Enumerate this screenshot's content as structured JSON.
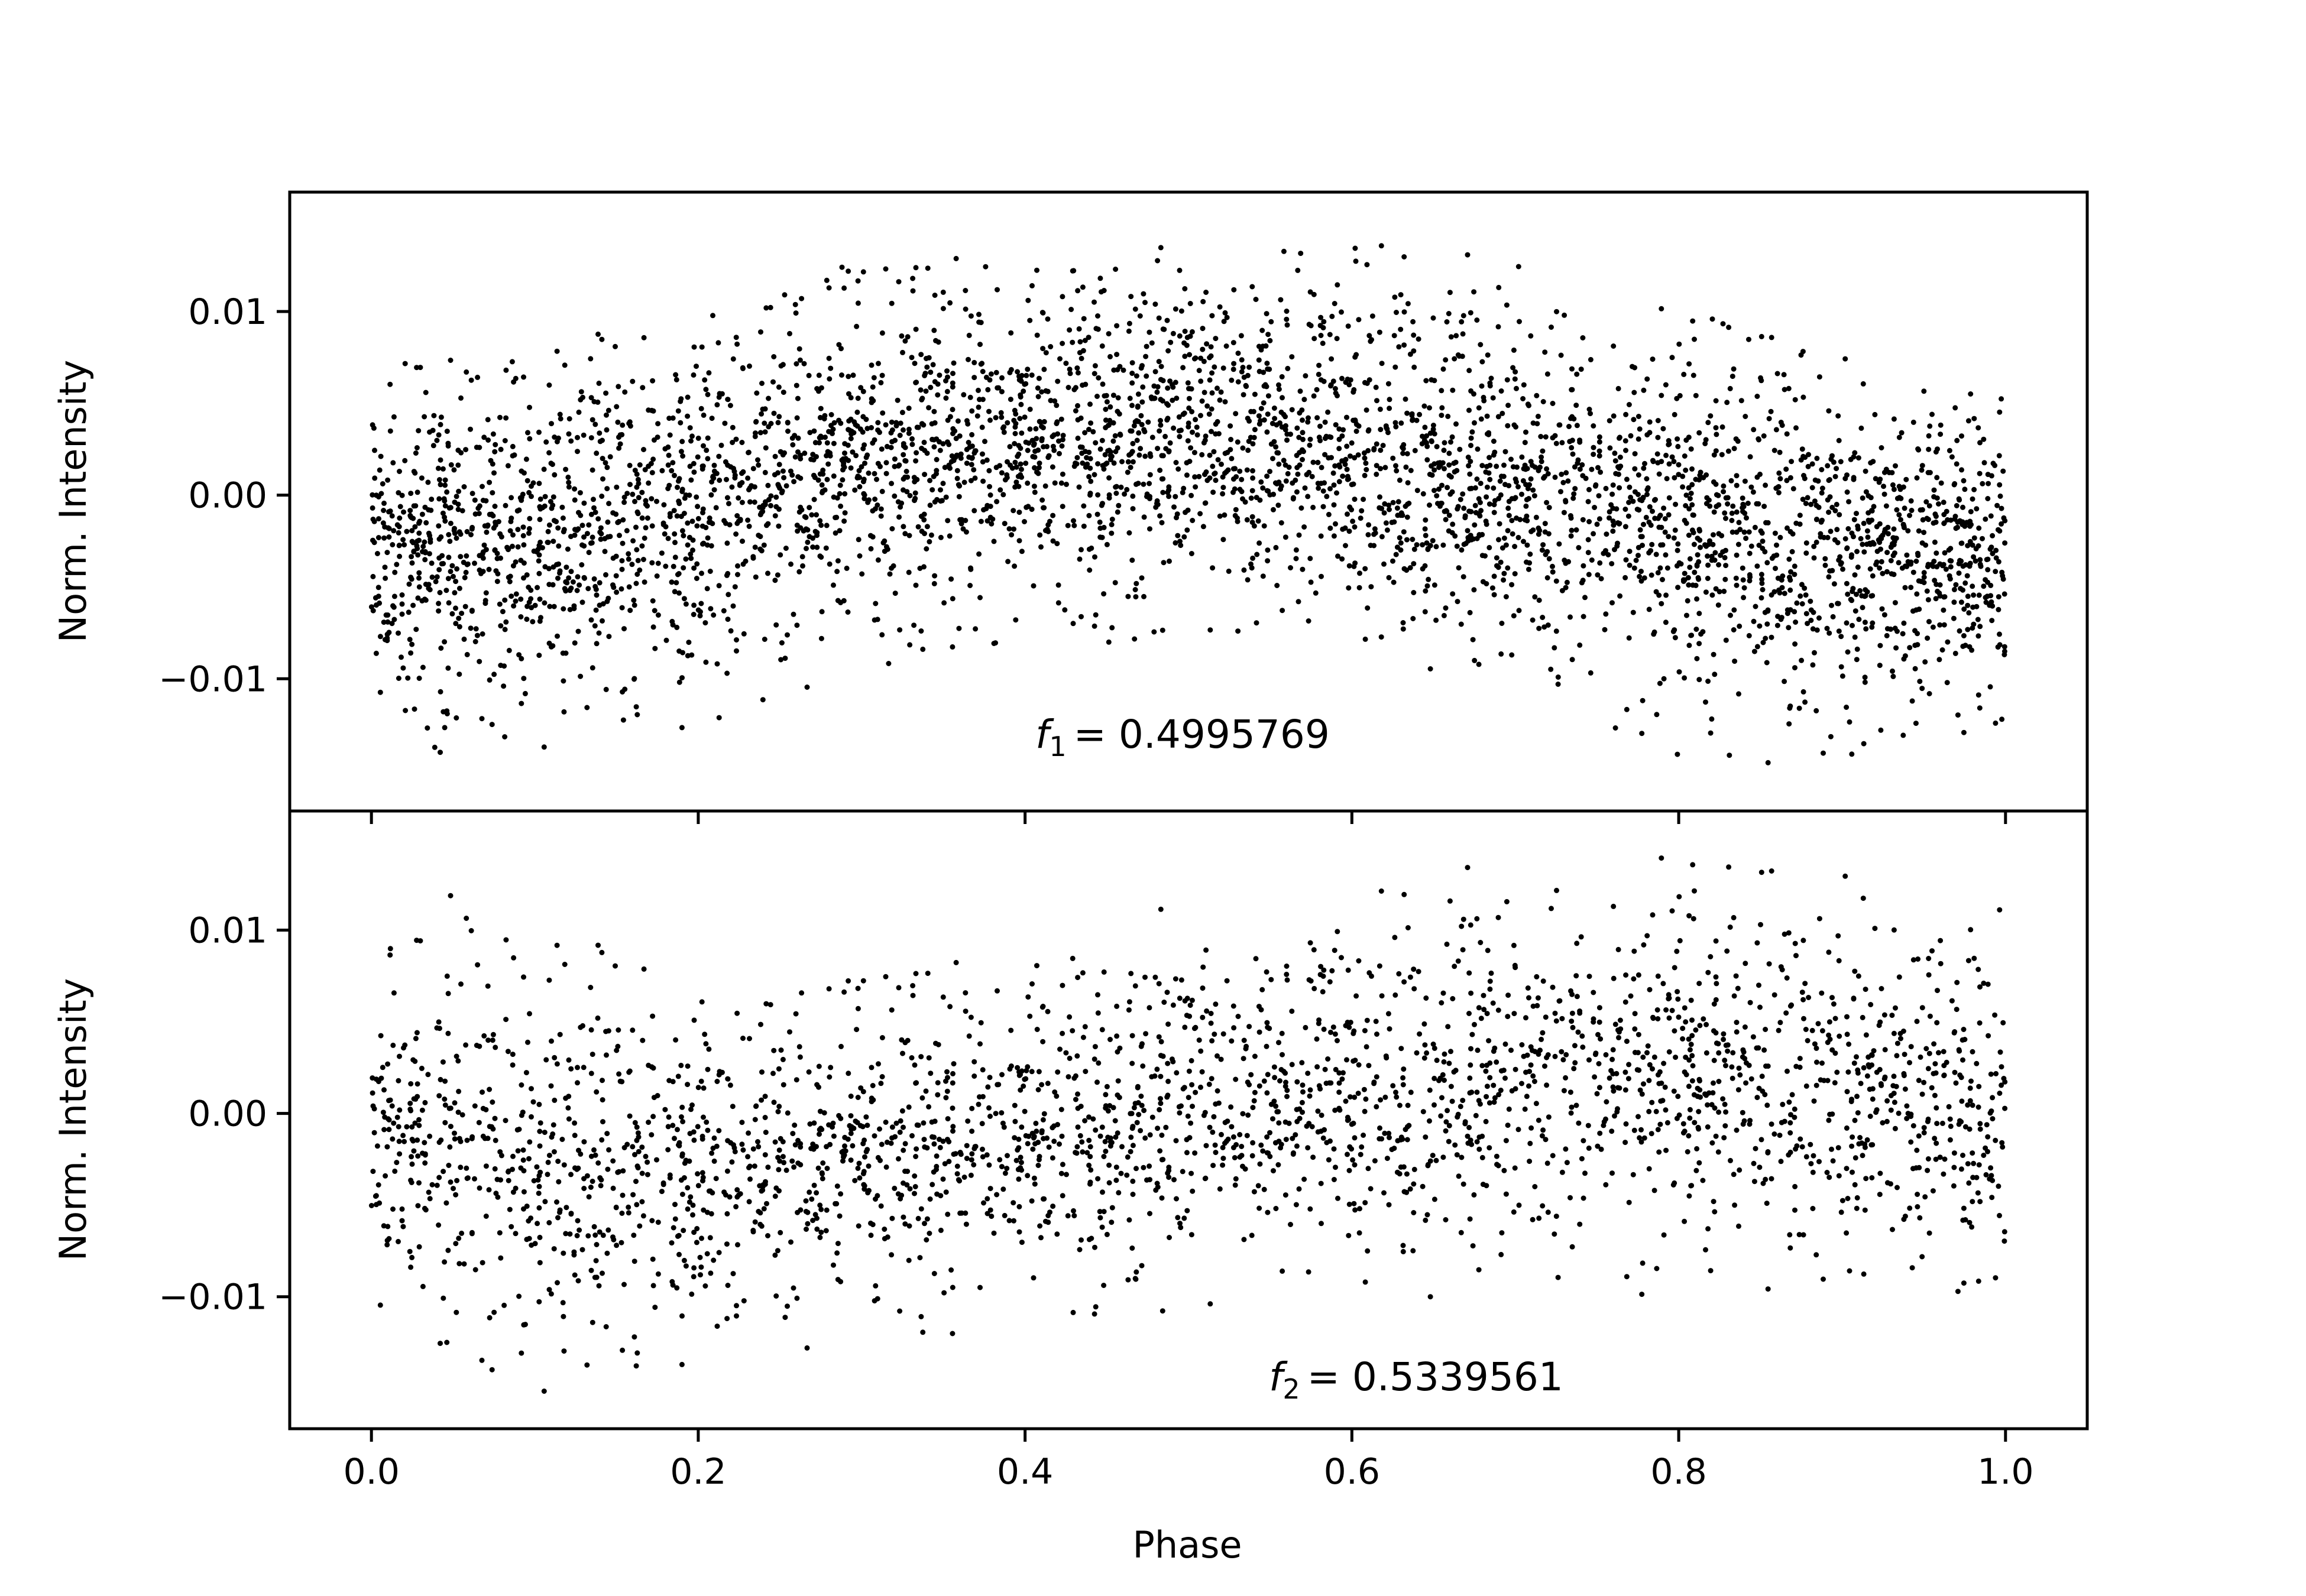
{
  "chart_data": [
    {
      "type": "scatter",
      "title": "",
      "xlabel": "",
      "ylabel": "Norm. Intensity",
      "xlim": [
        -0.05,
        1.05
      ],
      "ylim": [
        -0.0172,
        0.0165
      ],
      "x_ticks": [
        0.0,
        0.2,
        0.4,
        0.6,
        0.8,
        1.0
      ],
      "x_tick_labels": [
        "",
        "",
        "",
        "",
        "",
        ""
      ],
      "y_ticks": [
        0.01,
        0.0,
        -0.01
      ],
      "y_tick_labels": [
        "0.01",
        "0.00",
        "−0.01"
      ],
      "grid": false,
      "marker_color": "#000000",
      "annotation": {
        "symbol": "f",
        "subscript": "1",
        "text": "= 0.4995769",
        "x": 0.5,
        "y": -0.0133
      },
      "series": [
        {
          "note_shape": "phase-folded light curve; broad hump peaking near phase 0.5",
          "x": [
            0.0,
            0.05,
            0.1,
            0.15,
            0.2,
            0.25,
            0.3,
            0.35,
            0.4,
            0.45,
            0.5,
            0.55,
            0.6,
            0.65,
            0.7,
            0.75,
            0.8,
            0.85,
            0.9,
            0.95,
            1.0
          ],
          "y_center": [
            -0.003,
            -0.0028,
            -0.0022,
            -0.0013,
            -0.0003,
            0.0008,
            0.0017,
            0.0024,
            0.0028,
            0.003,
            0.003,
            0.0028,
            0.0022,
            0.0013,
            0.0003,
            -0.0007,
            -0.0016,
            -0.0023,
            -0.0028,
            -0.003,
            -0.003
          ],
          "y_upper": [
            0.007,
            0.0075,
            0.0085,
            0.0095,
            0.0105,
            0.012,
            0.013,
            0.0132,
            0.0135,
            0.0135,
            0.0135,
            0.014,
            0.0145,
            0.0135,
            0.0125,
            0.0115,
            0.01,
            0.009,
            0.008,
            0.007,
            0.0065
          ],
          "y_lower": [
            -0.014,
            -0.0145,
            -0.014,
            -0.0133,
            -0.0125,
            -0.011,
            -0.0095,
            -0.0085,
            -0.008,
            -0.008,
            -0.0082,
            -0.008,
            -0.0085,
            -0.0095,
            -0.011,
            -0.0125,
            -0.0145,
            -0.015,
            -0.0145,
            -0.0135,
            -0.0132
          ]
        }
      ]
    },
    {
      "type": "scatter",
      "title": "",
      "xlabel": "Phase",
      "ylabel": "Norm. Intensity",
      "xlim": [
        -0.05,
        1.05
      ],
      "ylim": [
        -0.0172,
        0.0165
      ],
      "x_ticks": [
        0.0,
        0.2,
        0.4,
        0.6,
        0.8,
        1.0
      ],
      "x_tick_labels": [
        "0.0",
        "0.2",
        "0.4",
        "0.6",
        "0.8",
        "1.0"
      ],
      "y_ticks": [
        0.01,
        0.0,
        -0.01
      ],
      "y_tick_labels": [
        "0.01",
        "0.00",
        "−0.01"
      ],
      "grid": false,
      "marker_color": "#000000",
      "annotation": {
        "symbol": "f",
        "subscript": "2",
        "text": "= 0.5339561",
        "x": 0.64,
        "y": -0.0148
      },
      "series": [
        {
          "note_shape": "phase-folded light curve; low near phase 0.15, rising toward phase 0.75",
          "x": [
            0.0,
            0.05,
            0.1,
            0.15,
            0.2,
            0.25,
            0.3,
            0.35,
            0.4,
            0.45,
            0.5,
            0.55,
            0.6,
            0.65,
            0.7,
            0.75,
            0.8,
            0.85,
            0.9,
            0.95,
            1.0
          ],
          "y_center": [
            -0.0015,
            -0.0022,
            -0.0027,
            -0.003,
            -0.003,
            -0.0028,
            -0.0024,
            -0.0019,
            -0.0013,
            -0.0007,
            -0.0001,
            0.0005,
            0.001,
            0.0015,
            0.0018,
            0.002,
            0.002,
            0.0018,
            0.0013,
            0.0006,
            -0.0002
          ],
          "y_upper": [
            0.0135,
            0.012,
            0.0105,
            0.0095,
            0.0085,
            0.008,
            0.008,
            0.0085,
            0.009,
            0.0105,
            0.0115,
            0.012,
            0.0125,
            0.013,
            0.014,
            0.0145,
            0.014,
            0.0135,
            0.0135,
            0.0135,
            0.0135
          ],
          "y_lower": [
            -0.0105,
            -0.0135,
            -0.0155,
            -0.0145,
            -0.0135,
            -0.013,
            -0.0125,
            -0.0122,
            -0.012,
            -0.0118,
            -0.0115,
            -0.0105,
            -0.01,
            -0.01,
            -0.0105,
            -0.0105,
            -0.0105,
            -0.01,
            -0.0095,
            -0.0095,
            -0.01
          ]
        }
      ]
    }
  ]
}
